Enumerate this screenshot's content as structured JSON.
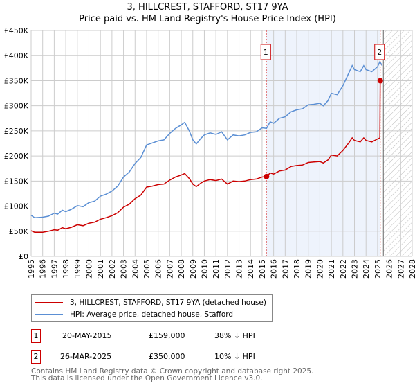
{
  "chart_data": {
    "type": "line",
    "title": "3, HILLCREST, STAFFORD, ST17 9YA",
    "subtitle": "Price paid vs. HM Land Registry's House Price Index (HPI)",
    "xlim": [
      1995,
      2028
    ],
    "ylim": [
      0,
      450000
    ],
    "y_ticks": [
      {
        "v": 0,
        "l": "£0"
      },
      {
        "v": 50000,
        "l": "£50K"
      },
      {
        "v": 100000,
        "l": "£100K"
      },
      {
        "v": 150000,
        "l": "£150K"
      },
      {
        "v": 200000,
        "l": "£200K"
      },
      {
        "v": 250000,
        "l": "£250K"
      },
      {
        "v": 300000,
        "l": "£300K"
      },
      {
        "v": 350000,
        "l": "£350K"
      },
      {
        "v": 400000,
        "l": "£400K"
      },
      {
        "v": 450000,
        "l": "£450K"
      }
    ],
    "x_ticks": [
      "1995",
      "1996",
      "1997",
      "1998",
      "1999",
      "2000",
      "2001",
      "2002",
      "2003",
      "2004",
      "2005",
      "2006",
      "2007",
      "2008",
      "2009",
      "2010",
      "2011",
      "2012",
      "2013",
      "2014",
      "2015",
      "2016",
      "2017",
      "2018",
      "2019",
      "2020",
      "2021",
      "2022",
      "2023",
      "2024",
      "2025",
      "2026",
      "2027",
      "2028"
    ],
    "grid": true,
    "shaded_range": [
      2015.38,
      2025.23
    ],
    "forecast_hatch_from": 2025.5,
    "series": [
      {
        "name": "3, HILLCREST, STAFFORD, ST17 9YA (detached house)",
        "color": "#cc0000",
        "x": [
          1995,
          1995.3,
          1996,
          1996.5,
          1997,
          1997.3,
          1997.7,
          1998,
          1998.5,
          1999,
          1999.5,
          2000,
          2000.5,
          2001,
          2001.5,
          2002,
          2002.5,
          2003,
          2003.5,
          2004,
          2004.5,
          2005,
          2005.5,
          2006,
          2006.5,
          2007,
          2007.5,
          2008,
          2008.3,
          2008.7,
          2009,
          2009.3,
          2009.7,
          2010,
          2010.5,
          2011,
          2011.5,
          2012,
          2012.5,
          2013,
          2013.5,
          2014,
          2014.5,
          2015,
          2015.38,
          2015.7,
          2016,
          2016.5,
          2017,
          2017.5,
          2018,
          2018.5,
          2019,
          2019.5,
          2020,
          2020.3,
          2020.7,
          2021,
          2021.5,
          2022,
          2022.5,
          2022.8,
          2023,
          2023.5,
          2023.8,
          2024,
          2024.5,
          2025,
          2025.2,
          2025.23,
          2025.4
        ],
        "y": [
          51000,
          48000,
          48000,
          50000,
          53000,
          52000,
          57000,
          55000,
          58000,
          63000,
          61000,
          66000,
          68000,
          74000,
          77000,
          81000,
          87000,
          98000,
          104000,
          115000,
          122000,
          138000,
          140000,
          143000,
          144000,
          152000,
          158000,
          162000,
          165000,
          155000,
          144000,
          139000,
          146000,
          150000,
          153000,
          151000,
          154000,
          144000,
          150000,
          149000,
          150000,
          153000,
          154000,
          158000,
          159000,
          166000,
          164000,
          170000,
          172000,
          179000,
          181000,
          182000,
          187000,
          188000,
          189000,
          186000,
          192000,
          202000,
          200000,
          211000,
          226000,
          236000,
          231000,
          228000,
          236000,
          231000,
          228000,
          234000,
          236000,
          350000,
          345000
        ]
      },
      {
        "name": "HPI: Average price, detached house, Stafford",
        "color": "#5b8fd4",
        "x": [
          1995,
          1995.3,
          1996,
          1996.5,
          1997,
          1997.3,
          1997.7,
          1998,
          1998.5,
          1999,
          1999.5,
          2000,
          2000.5,
          2001,
          2001.5,
          2002,
          2002.5,
          2003,
          2003.5,
          2004,
          2004.5,
          2005,
          2005.5,
          2006,
          2006.5,
          2007,
          2007.5,
          2008,
          2008.3,
          2008.7,
          2009,
          2009.3,
          2009.7,
          2010,
          2010.5,
          2011,
          2011.5,
          2012,
          2012.5,
          2013,
          2013.5,
          2014,
          2014.5,
          2015,
          2015.38,
          2015.7,
          2016,
          2016.5,
          2017,
          2017.5,
          2018,
          2018.5,
          2019,
          2019.5,
          2020,
          2020.3,
          2020.7,
          2021,
          2021.5,
          2022,
          2022.5,
          2022.8,
          2023,
          2023.5,
          2023.8,
          2024,
          2024.5,
          2025,
          2025.2,
          2025.4
        ],
        "y": [
          82000,
          77000,
          78000,
          80000,
          86000,
          84000,
          92000,
          89000,
          94000,
          101000,
          99000,
          107000,
          110000,
          120000,
          124000,
          130000,
          140000,
          158000,
          168000,
          185000,
          197000,
          222000,
          226000,
          230000,
          232000,
          245000,
          255000,
          262000,
          267000,
          250000,
          232000,
          224000,
          235000,
          242000,
          246000,
          243000,
          248000,
          232000,
          242000,
          240000,
          242000,
          247000,
          248000,
          256000,
          255000,
          268000,
          265000,
          275000,
          278000,
          288000,
          292000,
          294000,
          302000,
          303000,
          305000,
          300000,
          310000,
          325000,
          322000,
          340000,
          365000,
          380000,
          372000,
          368000,
          380000,
          372000,
          368000,
          378000,
          388000,
          380000
        ]
      }
    ],
    "annotations": [
      {
        "label": "1",
        "x": 2015.38,
        "y": 159000
      },
      {
        "label": "2",
        "x": 2025.23,
        "y": 350000
      }
    ]
  },
  "legend": {
    "items": [
      "3, HILLCREST, STAFFORD, ST17 9YA (detached house)",
      "HPI: Average price, detached house, Stafford"
    ]
  },
  "transactions": [
    {
      "n": "1",
      "date": "20-MAY-2015",
      "price": "£159,000",
      "hpi": "38% ↓ HPI"
    },
    {
      "n": "2",
      "date": "26-MAR-2025",
      "price": "£350,000",
      "hpi": "10% ↓ HPI"
    }
  ],
  "footer": {
    "line1": "Contains HM Land Registry data © Crown copyright and database right 2025.",
    "line2": "This data is licensed under the Open Government Licence v3.0."
  }
}
